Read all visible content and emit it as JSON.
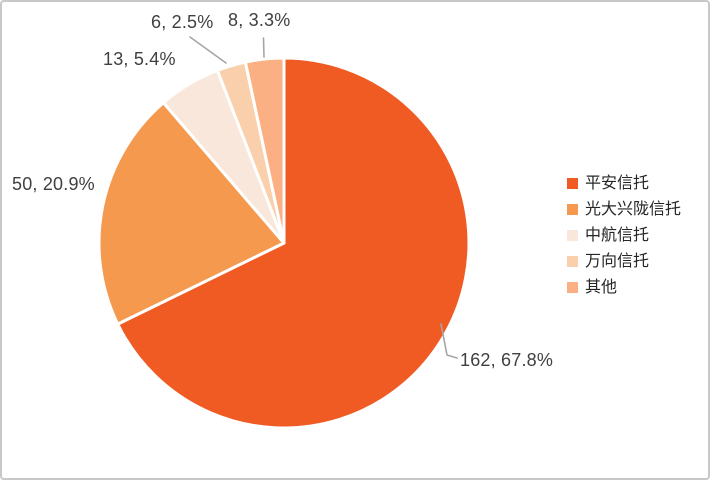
{
  "chart_data": {
    "type": "pie",
    "title": "",
    "categories": [
      "平安信托",
      "光大兴陇信托",
      "中航信托",
      "万向信托",
      "其他"
    ],
    "values": [
      162,
      50,
      13,
      6,
      8
    ],
    "percent_labels": [
      "67.8%",
      "20.9%",
      "5.4%",
      "2.5%",
      "3.3%"
    ],
    "data_labels": [
      "162, 67.8%",
      "50, 20.9%",
      "13, 5.4%",
      "6, 2.5%",
      "8, 3.3%"
    ],
    "colors": [
      "#F05A23",
      "#F4994E",
      "#FAE7DB",
      "#FAD0AC",
      "#FBB083"
    ],
    "slice_border_color": "#ffffff",
    "leader_line_color": "#a6a6a6",
    "label_text_color": "#404040",
    "legend_position": "right",
    "start_angle_deg": 0,
    "direction": "clockwise"
  }
}
